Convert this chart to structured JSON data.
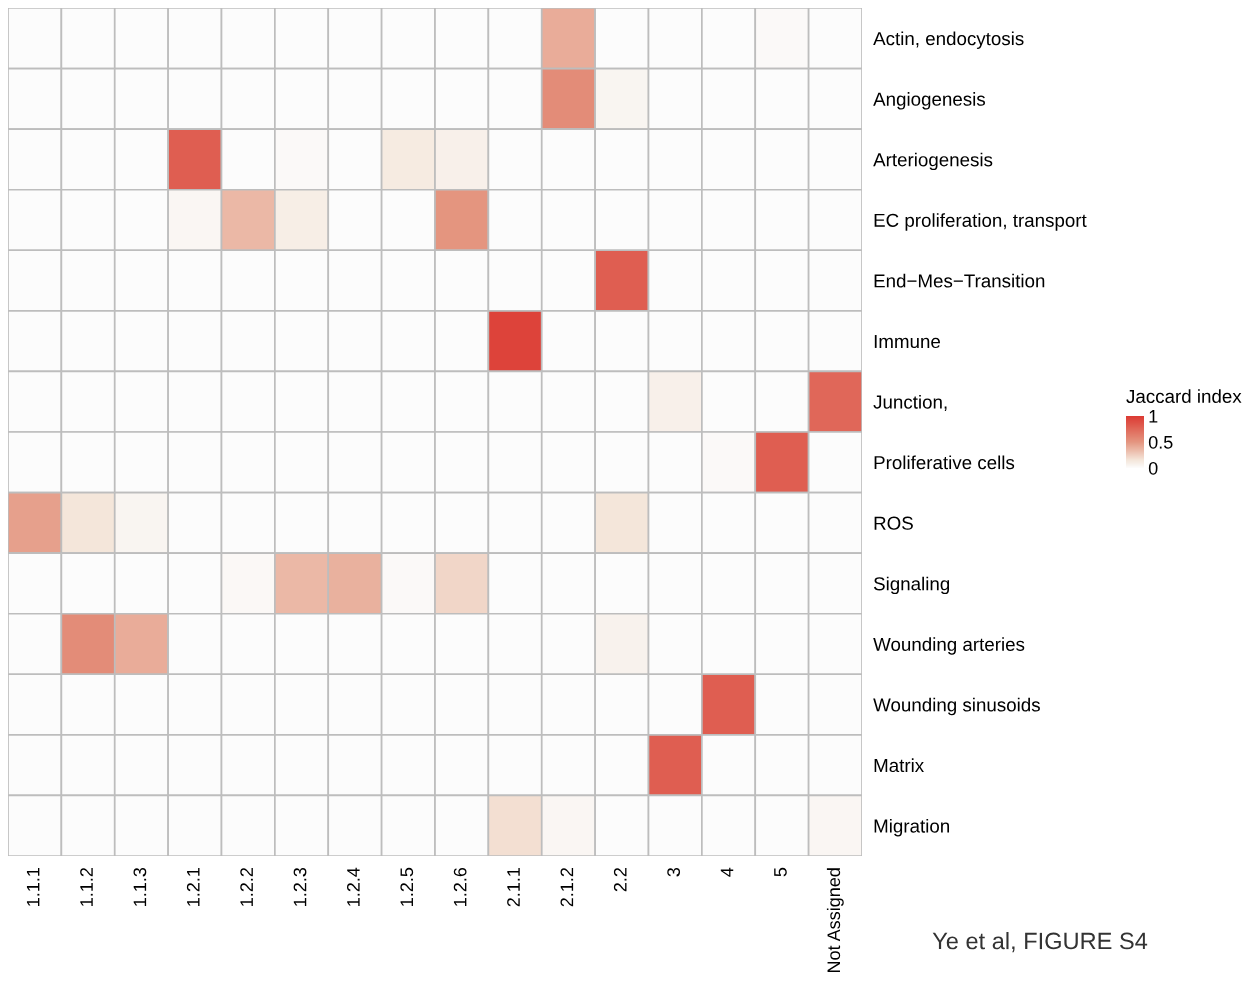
{
  "chart_data": {
    "type": "heatmap",
    "categories": [
      "1.1.1",
      "1.1.2",
      "1.1.3",
      "1.2.1",
      "1.2.2",
      "1.2.3",
      "1.2.4",
      "1.2.5",
      "1.2.6",
      "2.1.1",
      "2.1.2",
      "2.2",
      "3",
      "4",
      "5",
      "Not Assigned"
    ],
    "y_categories": [
      "Actin, endocytosis",
      "Angiogenesis",
      "Arteriogenesis",
      "EC proliferation, transport",
      "End−Mes−Transition",
      "Immune",
      "Junction,",
      "Proliferative cells",
      "ROS",
      "Signaling",
      "Wounding arteries",
      "Wounding sinusoids",
      "Matrix",
      "Migration"
    ],
    "cells": [
      [
        0,
        0,
        0,
        0,
        0,
        0,
        0,
        0,
        0,
        0,
        0.4,
        0,
        0,
        0,
        0.02,
        0
      ],
      [
        0,
        0,
        0,
        0,
        0,
        0,
        0,
        0,
        0,
        0,
        0.55,
        0.05,
        0,
        0,
        0,
        0
      ],
      [
        0,
        0,
        0,
        0.8,
        0,
        0.02,
        0,
        0.12,
        0.08,
        0,
        0,
        0,
        0,
        0,
        0,
        0
      ],
      [
        0,
        0,
        0,
        0.04,
        0.35,
        0.1,
        0,
        0,
        0.5,
        0,
        0,
        0,
        0,
        0,
        0,
        0
      ],
      [
        0,
        0,
        0,
        0,
        0,
        0,
        0,
        0,
        0,
        0,
        0,
        0.8,
        0,
        0,
        0,
        0
      ],
      [
        0,
        0,
        0,
        0,
        0,
        0,
        0,
        0,
        0,
        0.95,
        0,
        0,
        0,
        0,
        0,
        0
      ],
      [
        0,
        0,
        0,
        0,
        0,
        0,
        0,
        0,
        0,
        0,
        0,
        0,
        0.08,
        0,
        0,
        0.75
      ],
      [
        0,
        0,
        0,
        0,
        0,
        0,
        0,
        0,
        0,
        0,
        0,
        0,
        0,
        0.02,
        0.8,
        0
      ],
      [
        0.45,
        0.15,
        0.05,
        0,
        0,
        0,
        0,
        0,
        0,
        0,
        0,
        0.15,
        0,
        0,
        0,
        0
      ],
      [
        0,
        0,
        0,
        0,
        0.03,
        0.35,
        0.38,
        0.02,
        0.22,
        0,
        0,
        0,
        0,
        0,
        0,
        0
      ],
      [
        0,
        0.55,
        0.4,
        0,
        0,
        0,
        0,
        0,
        0,
        0,
        0,
        0.07,
        0,
        0,
        0,
        0
      ],
      [
        0,
        0,
        0,
        0,
        0,
        0,
        0,
        0,
        0,
        0,
        0,
        0,
        0,
        0.8,
        0,
        0
      ],
      [
        0,
        0,
        0,
        0,
        0,
        0,
        0,
        0,
        0,
        0,
        0,
        0,
        0.8,
        0,
        0,
        0
      ],
      [
        0,
        0,
        0,
        0,
        0,
        0,
        0,
        0,
        0,
        0.18,
        0.04,
        0,
        0,
        0,
        0,
        0.04
      ]
    ],
    "clim": [
      0,
      1
    ],
    "cticks": [
      1,
      0.5,
      0
    ],
    "clabel": "Jaccard index",
    "annotations": [
      "Ye et al, FIGURE S4"
    ]
  }
}
